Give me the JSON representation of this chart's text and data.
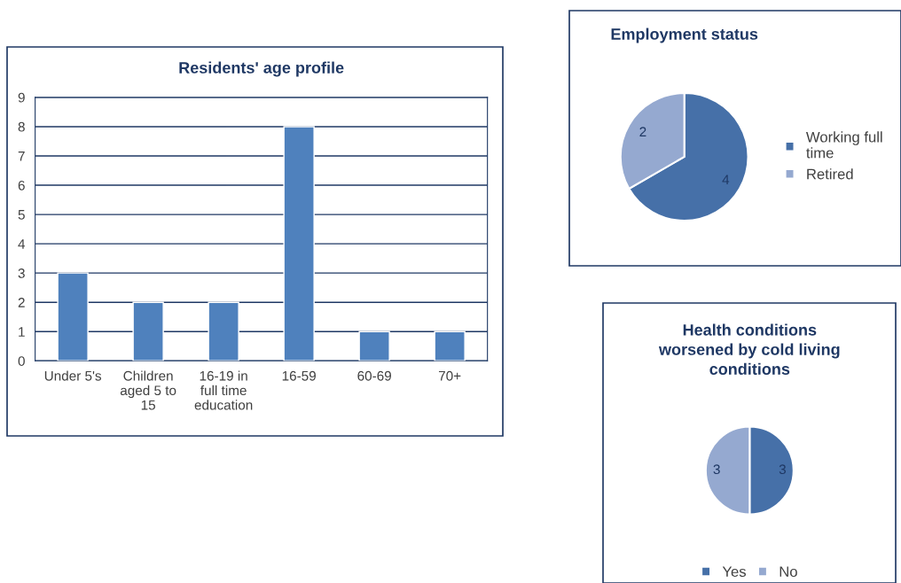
{
  "chart_data": [
    {
      "type": "bar",
      "title": "Residents' age profile",
      "categories": [
        "Under 5's",
        "Children aged 5 to 15",
        "16-19 in full time education",
        "16-59",
        "60-69",
        "70+"
      ],
      "values": [
        3,
        2,
        2,
        8,
        1,
        1
      ],
      "color": "#4f81bd",
      "ylim": [
        0,
        9
      ],
      "yticks": [
        0,
        1,
        2,
        3,
        4,
        5,
        6,
        7,
        8,
        9
      ],
      "grid": "y"
    },
    {
      "type": "pie",
      "title": "Employment status",
      "categories": [
        "Working full time",
        "Retired"
      ],
      "values": [
        4,
        2
      ],
      "colors": [
        "#4670a8",
        "#95a9d0"
      ],
      "data_labels": true,
      "legend": "right"
    },
    {
      "type": "pie",
      "title": "Health conditions worsened by cold living conditions",
      "categories": [
        "Yes",
        "No"
      ],
      "values": [
        3,
        3
      ],
      "colors": [
        "#4670a8",
        "#95a9d0"
      ],
      "data_labels": true,
      "legend": "bottom"
    }
  ]
}
